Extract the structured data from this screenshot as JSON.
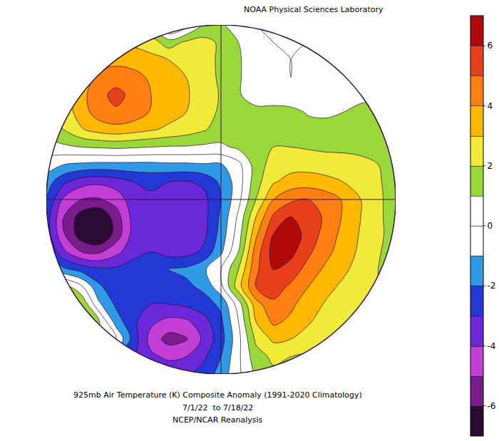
{
  "chart_data": {
    "type": "contour",
    "title": "925mb Air Temperature (K) Composite Anomaly (1991-2020 Climatology)",
    "subtitle": "7/1/22  to 7/18/22",
    "annotations": [
      "NCEP/NCAR Reanalysis",
      "NOAA Physical Sciences Laboratory"
    ],
    "tick_labels": false,
    "levels": [
      -6,
      -5,
      -4,
      -3,
      -2,
      -1,
      0,
      1,
      2,
      3,
      4,
      5,
      6
    ],
    "zlim": [
      -7,
      7
    ],
    "zticks": [
      -6,
      -4,
      -2,
      0,
      2,
      4,
      6
    ],
    "cells": [
      [
        2,
        2,
        2,
        2,
        2,
        2,
        1,
        -1.5,
        -0.5,
        1,
        1.2,
        0.3,
        0,
        0,
        0,
        0,
        0,
        0,
        0,
        0,
        0
      ],
      [
        2.5,
        2.5,
        2.5,
        2.5,
        2.8,
        2.8,
        2.5,
        1.5,
        2.2,
        2.4,
        1.8,
        1.0,
        0.3,
        0,
        -0.2,
        0,
        0,
        0,
        0,
        0,
        0
      ],
      [
        2.5,
        3,
        3.3,
        3.5,
        3.6,
        3.5,
        3.3,
        3.0,
        2.8,
        2.4,
        1.8,
        1.1,
        0.5,
        0.1,
        0,
        0.3,
        0.2,
        0,
        0,
        0,
        0
      ],
      [
        2.5,
        2.8,
        3.2,
        4.3,
        4.7,
        4.4,
        3.8,
        3.4,
        3.0,
        2.5,
        1.8,
        1.1,
        0.5,
        0.2,
        0,
        0.3,
        0.4,
        0.2,
        0,
        0,
        0
      ],
      [
        2,
        2.5,
        3.6,
        4.8,
        5.2,
        4.8,
        4.0,
        3.5,
        3.1,
        2.6,
        1.9,
        1.1,
        0.5,
        0.2,
        0.3,
        0.4,
        0.5,
        0.6,
        0.8,
        0.8,
        0.8
      ],
      [
        2,
        2.4,
        3.5,
        4.5,
        4.9,
        4.6,
        3.9,
        3.4,
        3.0,
        2.5,
        1.8,
        1.3,
        1.3,
        1.5,
        1.3,
        0.9,
        0.8,
        1.0,
        1.2,
        1.4,
        1.5
      ],
      [
        1.5,
        2.0,
        2.9,
        3.4,
        3.6,
        3.4,
        3.1,
        2.8,
        2.5,
        2.1,
        1.6,
        1.5,
        1.7,
        1.9,
        1.6,
        1.4,
        1.4,
        1.5,
        1.6,
        1.8,
        1.8
      ],
      [
        0.5,
        0.8,
        1.0,
        1.1,
        1.2,
        1.1,
        1.0,
        0.9,
        0.9,
        0.8,
        0.8,
        1.2,
        1.8,
        2.0,
        2.0,
        1.9,
        1.8,
        1.8,
        1.8,
        1.9,
        1.9
      ],
      [
        -0.5,
        -1.0,
        -1.2,
        -1.3,
        -1.3,
        -1.3,
        -1.3,
        -1.2,
        -1.2,
        -1.1,
        -1.1,
        -0.3,
        1.5,
        2.4,
        2.6,
        2.6,
        2.5,
        2.4,
        2.2,
        2.0,
        1.8
      ],
      [
        -1.5,
        -2.8,
        -3.6,
        -3.8,
        -3.5,
        -3.0,
        -2.8,
        -3.0,
        -3.1,
        -2.8,
        -1.8,
        -0.5,
        1.6,
        2.9,
        3.4,
        3.5,
        3.3,
        3.0,
        2.6,
        2.1,
        1.6
      ],
      [
        -2.0,
        -4.2,
        -5.0,
        -5.1,
        -4.6,
        -3.4,
        -3.2,
        -3.5,
        -3.7,
        -3.3,
        -2.0,
        -0.3,
        2.0,
        4.0,
        4.8,
        5.0,
        4.6,
        3.9,
        3.0,
        2.2,
        1.5
      ],
      [
        -2.5,
        -5.0,
        -6.5,
        -7.0,
        -5.5,
        -3.6,
        -3.3,
        -3.8,
        -3.9,
        -3.4,
        -1.8,
        0.2,
        3.0,
        5.2,
        6.0,
        5.6,
        4.8,
        3.9,
        3.0,
        2.2,
        1.5
      ],
      [
        -2.4,
        -4.9,
        -6.6,
        -7.2,
        -5.6,
        -3.6,
        -3.2,
        -3.8,
        -3.9,
        -3.3,
        -1.6,
        0.5,
        3.8,
        6.0,
        6.6,
        5.6,
        4.6,
        3.7,
        2.9,
        2.2,
        1.6
      ],
      [
        -1.8,
        -3.8,
        -5.0,
        -5.2,
        -4.3,
        -3.3,
        -3.0,
        -3.4,
        -3.4,
        -2.8,
        -1.2,
        1.0,
        4.5,
        6.4,
        6.3,
        5.2,
        4.3,
        3.5,
        2.8,
        2.1,
        1.5
      ],
      [
        -0.8,
        -1.8,
        -2.4,
        -2.8,
        -2.8,
        -2.6,
        -2.2,
        -2.0,
        -1.8,
        -1.2,
        0,
        2.0,
        4.8,
        6.0,
        5.6,
        4.6,
        3.8,
        3.2,
        2.6,
        2.0,
        1.5
      ],
      [
        1.5,
        1.5,
        0.2,
        -1.8,
        -2.7,
        -2.6,
        -2.2,
        -2.0,
        -2.2,
        -1.8,
        -0.3,
        2.6,
        5.0,
        5.5,
        4.8,
        4.0,
        3.3,
        2.8,
        2.4,
        2.0,
        1.6
      ],
      [
        2,
        2.2,
        2.0,
        -0.8,
        -2.2,
        -2.8,
        -3.0,
        -3.0,
        -2.8,
        -2.4,
        -1.8,
        0.5,
        3.6,
        4.8,
        4.2,
        3.5,
        2.9,
        2.4,
        2.2,
        2.0,
        1.7
      ],
      [
        2,
        2,
        1.8,
        1.2,
        -1.5,
        -2.8,
        -3.8,
        -4.3,
        -4.2,
        -3.4,
        -2.2,
        0,
        3.0,
        4.2,
        3.8,
        3.1,
        2.6,
        2.2,
        2.0,
        1.8,
        1.6
      ],
      [
        1.5,
        1.5,
        1.2,
        0.8,
        0.0,
        -2.5,
        -4.4,
        -5.4,
        -5.1,
        -3.8,
        -2.4,
        -0.3,
        2.2,
        3.2,
        3.0,
        2.6,
        2.2,
        1.9,
        1.7,
        1.5,
        1.3
      ],
      [
        1,
        1,
        0,
        -1,
        -2,
        -2.8,
        -3.8,
        -4.2,
        -4.0,
        -3.2,
        -2.0,
        -0.2,
        1.6,
        2.2,
        2.0,
        1.8,
        1.5,
        1.3,
        1.2,
        1.0,
        1.0
      ],
      [
        1,
        1,
        0,
        -1,
        -2,
        -2.5,
        -3,
        -3.3,
        -3.2,
        -2.6,
        -1.6,
        -0.2,
        1.2,
        1.8,
        1.6,
        1.4,
        1.2,
        1,
        1,
        1,
        1
      ]
    ]
  }
}
